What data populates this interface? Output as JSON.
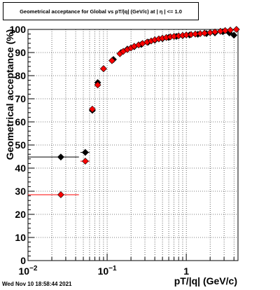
{
  "chart_data": {
    "type": "scatter",
    "title": "Geometrical acceptance for Global vs pT/|q| (GeV/c) at |  η | <= 1.0",
    "xlabel": "pT/|q| (GeV/c)",
    "ylabel": "Geometrical acceptance (%)",
    "xscale": "log",
    "xlim": [
      0.01,
      4.5
    ],
    "ylim": [
      0,
      100
    ],
    "grid": true,
    "x_major_ticks": [
      0.01,
      0.1,
      1
    ],
    "x_tick_labels": [
      {
        "base": "10",
        "exp": "−2"
      },
      {
        "base": "10",
        "exp": "−1"
      },
      {
        "base": "1",
        "exp": ""
      }
    ],
    "y_ticks": [
      0,
      10,
      20,
      30,
      40,
      50,
      60,
      70,
      80,
      90,
      100
    ],
    "series": [
      {
        "color": "#000000",
        "marker": "diamond",
        "points": [
          {
            "x": 0.026,
            "y": 44.8,
            "xlo": 0.01,
            "xhi": 0.044
          },
          {
            "x": 0.053,
            "y": 46.8,
            "xlo": 0.046,
            "xhi": 0.06
          },
          {
            "x": 0.065,
            "y": 65.0
          },
          {
            "x": 0.076,
            "y": 77.0
          },
          {
            "x": 0.09,
            "y": 83.0
          },
          {
            "x": 0.12,
            "y": 87.0
          },
          {
            "x": 0.15,
            "y": 90.0
          },
          {
            "x": 0.18,
            "y": 91.5
          },
          {
            "x": 0.22,
            "y": 92.5
          },
          {
            "x": 0.27,
            "y": 93.5
          },
          {
            "x": 0.33,
            "y": 94.5
          },
          {
            "x": 0.4,
            "y": 95.3
          },
          {
            "x": 0.5,
            "y": 96.0
          },
          {
            "x": 0.6,
            "y": 96.5
          },
          {
            "x": 0.75,
            "y": 97.0
          },
          {
            "x": 0.9,
            "y": 97.3
          },
          {
            "x": 1.1,
            "y": 97.6
          },
          {
            "x": 1.4,
            "y": 97.9
          },
          {
            "x": 1.8,
            "y": 98.2
          },
          {
            "x": 2.3,
            "y": 98.5
          },
          {
            "x": 2.9,
            "y": 99.0
          },
          {
            "x": 3.5,
            "y": 98.5
          },
          {
            "x": 4.0,
            "y": 97.5
          }
        ]
      },
      {
        "color": "#ff0000",
        "marker": "diamond",
        "points": [
          {
            "x": 0.026,
            "y": 28.5,
            "xlo": 0.01,
            "xhi": 0.044
          },
          {
            "x": 0.053,
            "y": 43.0,
            "xlo": 0.046,
            "xhi": 0.06
          },
          {
            "x": 0.065,
            "y": 65.5
          },
          {
            "x": 0.076,
            "y": 76.0
          },
          {
            "x": 0.09,
            "y": 83.0
          },
          {
            "x": 0.115,
            "y": 86.5
          },
          {
            "x": 0.145,
            "y": 89.5
          },
          {
            "x": 0.16,
            "y": 90.5
          },
          {
            "x": 0.18,
            "y": 91.3
          },
          {
            "x": 0.2,
            "y": 92.0
          },
          {
            "x": 0.22,
            "y": 92.7
          },
          {
            "x": 0.25,
            "y": 93.3
          },
          {
            "x": 0.28,
            "y": 93.9
          },
          {
            "x": 0.32,
            "y": 94.5
          },
          {
            "x": 0.36,
            "y": 95.0
          },
          {
            "x": 0.4,
            "y": 95.5
          },
          {
            "x": 0.45,
            "y": 95.9
          },
          {
            "x": 0.5,
            "y": 96.2
          },
          {
            "x": 0.56,
            "y": 96.5
          },
          {
            "x": 0.63,
            "y": 96.8
          },
          {
            "x": 0.7,
            "y": 97.0
          },
          {
            "x": 0.8,
            "y": 97.2
          },
          {
            "x": 0.9,
            "y": 97.4
          },
          {
            "x": 1.0,
            "y": 97.6
          },
          {
            "x": 1.15,
            "y": 97.8
          },
          {
            "x": 1.3,
            "y": 98.0
          },
          {
            "x": 1.5,
            "y": 98.2
          },
          {
            "x": 1.7,
            "y": 98.4
          },
          {
            "x": 2.0,
            "y": 98.6
          },
          {
            "x": 2.3,
            "y": 98.9
          },
          {
            "x": 2.7,
            "y": 99.2
          },
          {
            "x": 3.1,
            "y": 99.5
          },
          {
            "x": 3.6,
            "y": 99.7
          },
          {
            "x": 4.3,
            "y": 100.0
          }
        ]
      }
    ]
  },
  "footer": {
    "timestamp": "Wed Nov 10 18:58:44 2021"
  }
}
